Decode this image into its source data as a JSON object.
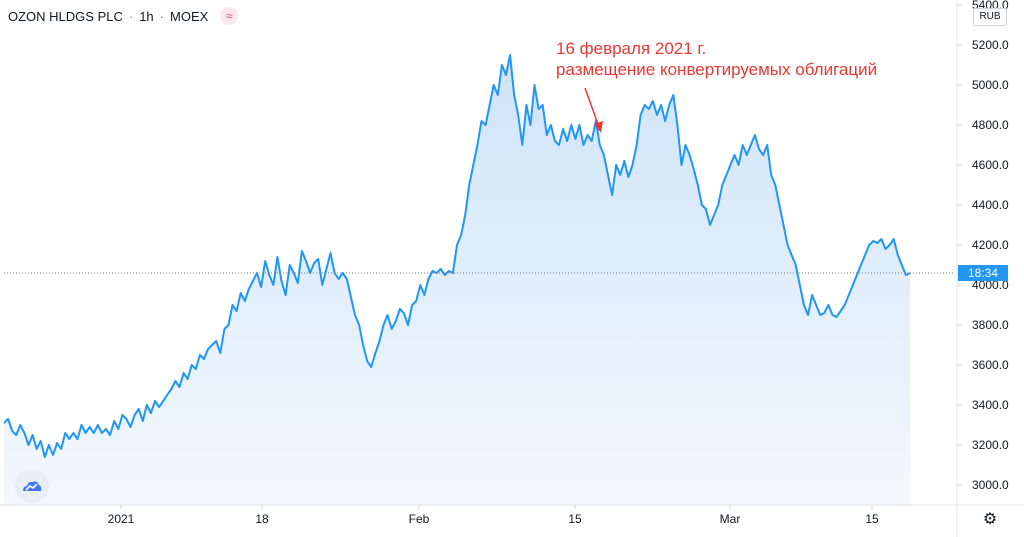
{
  "header": {
    "symbol": "OZON HLDGS PLC",
    "interval": "1h",
    "exchange": "MOEX",
    "separator": "·",
    "badge_icon": "wave-icon"
  },
  "currency_label": "RUB",
  "last_price_time": "18:34",
  "annotation": {
    "line1": "16 февраля 2021 г.",
    "line2": "размещение конвертируемых облигаций",
    "color": "#e53935"
  },
  "colors": {
    "line": "#2196f3",
    "area_top": "#cfe4f8",
    "area_bottom": "#f3f8fd",
    "price_tag": "#2196f3"
  },
  "icons": {
    "logo": "tradingview-cloud-icon",
    "settings": "gear-icon"
  },
  "chart_data": {
    "type": "area",
    "ylim": [
      2920,
      5400
    ],
    "y_ticks": [
      "3000.0",
      "3200.0",
      "3400.0",
      "3600.0",
      "3800.0",
      "4000.0",
      "4200.0",
      "4400.0",
      "4600.0",
      "4800.0",
      "5000.0",
      "5200.0",
      "5400.0"
    ],
    "x_ticks": [
      "2021",
      "18",
      "Feb",
      "15",
      "Mar",
      "15"
    ],
    "last_value": 4060,
    "values": [
      3310,
      3330,
      3270,
      3250,
      3300,
      3260,
      3200,
      3250,
      3180,
      3220,
      3140,
      3200,
      3150,
      3210,
      3180,
      3260,
      3230,
      3260,
      3230,
      3300,
      3260,
      3290,
      3260,
      3300,
      3260,
      3280,
      3250,
      3320,
      3280,
      3350,
      3330,
      3290,
      3350,
      3380,
      3320,
      3400,
      3360,
      3420,
      3390,
      3420,
      3450,
      3480,
      3520,
      3490,
      3560,
      3530,
      3600,
      3580,
      3650,
      3630,
      3680,
      3700,
      3720,
      3660,
      3780,
      3800,
      3900,
      3870,
      3960,
      3920,
      3980,
      4020,
      4060,
      3990,
      4120,
      4050,
      4000,
      4140,
      4020,
      3950,
      4100,
      4060,
      4010,
      4170,
      4120,
      4060,
      4110,
      4130,
      4000,
      4080,
      4160,
      4060,
      4030,
      4060,
      4030,
      3940,
      3850,
      3800,
      3700,
      3620,
      3590,
      3660,
      3720,
      3800,
      3850,
      3780,
      3820,
      3880,
      3860,
      3800,
      3900,
      3920,
      4000,
      3950,
      4030,
      4070,
      4060,
      4080,
      4050,
      4070,
      4060,
      4200,
      4250,
      4350,
      4500,
      4600,
      4700,
      4820,
      4800,
      4900,
      5000,
      4950,
      5100,
      5050,
      5150,
      4950,
      4850,
      4700,
      4900,
      4800,
      5000,
      4880,
      4900,
      4750,
      4800,
      4720,
      4700,
      4780,
      4720,
      4800,
      4730,
      4800,
      4700,
      4750,
      4720,
      4820,
      4700,
      4650,
      4550,
      4450,
      4600,
      4550,
      4620,
      4540,
      4600,
      4700,
      4850,
      4900,
      4880,
      4920,
      4850,
      4900,
      4820,
      4900,
      4950,
      4800,
      4600,
      4700,
      4650,
      4580,
      4500,
      4400,
      4380,
      4300,
      4350,
      4400,
      4500,
      4550,
      4600,
      4650,
      4600,
      4700,
      4650,
      4700,
      4750,
      4680,
      4650,
      4700,
      4550,
      4500,
      4400,
      4300,
      4200,
      4150,
      4100,
      4000,
      3900,
      3850,
      3950,
      3900,
      3850,
      3860,
      3900,
      3850,
      3840,
      3870,
      3900,
      3950,
      4000,
      4050,
      4100,
      4150,
      4200,
      4220,
      4210,
      4230,
      4180,
      4200,
      4230,
      4150,
      4100,
      4050,
      4060
    ]
  }
}
